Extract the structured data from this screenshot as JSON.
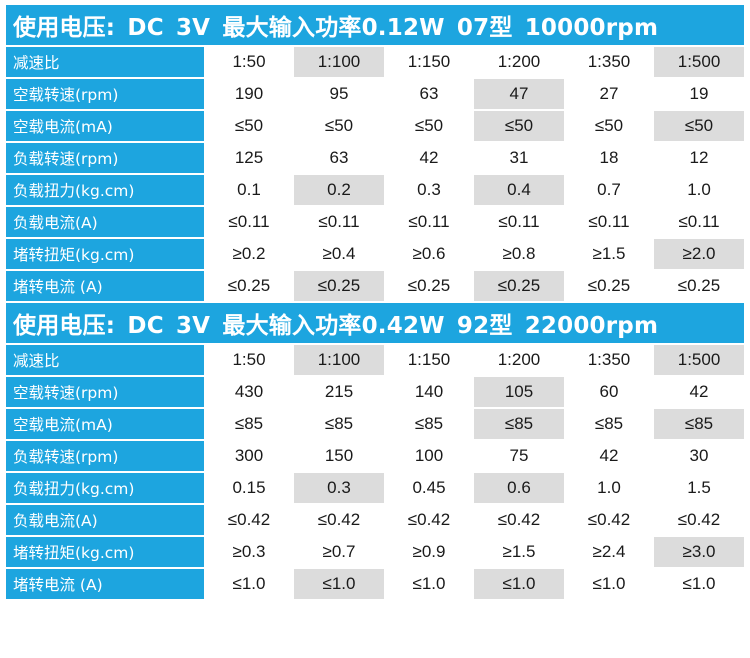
{
  "blocks": [
    {
      "title": "使用电压: DC 3V  最大输入功率0.12W  07型  10000rpm",
      "rows": [
        {
          "label": "减速比",
          "values": [
            "1:50",
            "1:100",
            "1:150",
            "1:200",
            "1:350",
            "1:500"
          ],
          "shade": [
            0,
            1,
            0,
            0,
            0,
            1
          ]
        },
        {
          "label": "空载转速(rpm)",
          "values": [
            "190",
            "95",
            "63",
            "47",
            "27",
            "19"
          ],
          "shade": [
            0,
            0,
            0,
            1,
            0,
            0
          ]
        },
        {
          "label": "空载电流(mA)",
          "values": [
            "≤50",
            "≤50",
            "≤50",
            "≤50",
            "≤50",
            "≤50"
          ],
          "shade": [
            0,
            0,
            0,
            1,
            0,
            1
          ]
        },
        {
          "label": "负载转速(rpm)",
          "values": [
            "125",
            "63",
            "42",
            "31",
            "18",
            "12"
          ],
          "shade": [
            0,
            0,
            0,
            0,
            0,
            0
          ]
        },
        {
          "label": "负载扭力(kg.cm)",
          "values": [
            "0.1",
            "0.2",
            "0.3",
            "0.4",
            "0.7",
            "1.0"
          ],
          "shade": [
            0,
            1,
            0,
            1,
            0,
            0
          ]
        },
        {
          "label": "负载电流(A)",
          "values": [
            "≤0.11",
            "≤0.11",
            "≤0.11",
            "≤0.11",
            "≤0.11",
            "≤0.11"
          ],
          "shade": [
            0,
            0,
            0,
            0,
            0,
            0
          ]
        },
        {
          "label": "堵转扭矩(kg.cm)",
          "values": [
            "≥0.2",
            "≥0.4",
            "≥0.6",
            "≥0.8",
            "≥1.5",
            "≥2.0"
          ],
          "shade": [
            0,
            0,
            0,
            0,
            0,
            1
          ]
        },
        {
          "label": "堵转电流 (A)",
          "values": [
            "≤0.25",
            "≤0.25",
            "≤0.25",
            "≤0.25",
            "≤0.25",
            "≤0.25"
          ],
          "shade": [
            0,
            1,
            0,
            1,
            0,
            0
          ]
        }
      ]
    },
    {
      "title": "使用电压: DC 3V  最大输入功率0.42W  92型  22000rpm",
      "rows": [
        {
          "label": "减速比",
          "values": [
            "1:50",
            "1:100",
            "1:150",
            "1:200",
            "1:350",
            "1:500"
          ],
          "shade": [
            0,
            1,
            0,
            0,
            0,
            1
          ]
        },
        {
          "label": "空载转速(rpm)",
          "values": [
            "430",
            "215",
            "140",
            "105",
            "60",
            "42"
          ],
          "shade": [
            0,
            0,
            0,
            1,
            0,
            0
          ]
        },
        {
          "label": "空载电流(mA)",
          "values": [
            "≤85",
            "≤85",
            "≤85",
            "≤85",
            "≤85",
            "≤85"
          ],
          "shade": [
            0,
            0,
            0,
            1,
            0,
            1
          ]
        },
        {
          "label": "负载转速(rpm)",
          "values": [
            "300",
            "150",
            "100",
            "75",
            "42",
            "30"
          ],
          "shade": [
            0,
            0,
            0,
            0,
            0,
            0
          ]
        },
        {
          "label": "负载扭力(kg.cm)",
          "values": [
            "0.15",
            "0.3",
            "0.45",
            "0.6",
            "1.0",
            "1.5"
          ],
          "shade": [
            0,
            1,
            0,
            1,
            0,
            0
          ]
        },
        {
          "label": "负载电流(A)",
          "values": [
            "≤0.42",
            "≤0.42",
            "≤0.42",
            "≤0.42",
            "≤0.42",
            "≤0.42"
          ],
          "shade": [
            0,
            0,
            0,
            0,
            0,
            0
          ]
        },
        {
          "label": "堵转扭矩(kg.cm)",
          "values": [
            "≥0.3",
            "≥0.7",
            "≥0.9",
            "≥1.5",
            "≥2.4",
            "≥3.0"
          ],
          "shade": [
            0,
            0,
            0,
            0,
            0,
            1
          ]
        },
        {
          "label": "堵转电流 (A)",
          "values": [
            "≤1.0",
            "≤1.0",
            "≤1.0",
            "≤1.0",
            "≤1.0",
            "≤1.0"
          ],
          "shade": [
            0,
            1,
            0,
            1,
            0,
            0
          ]
        }
      ]
    }
  ],
  "colors": {
    "header_blue": "#1da5df",
    "cell_gray": "#dcdcdc",
    "cell_white": "#ffffff"
  }
}
